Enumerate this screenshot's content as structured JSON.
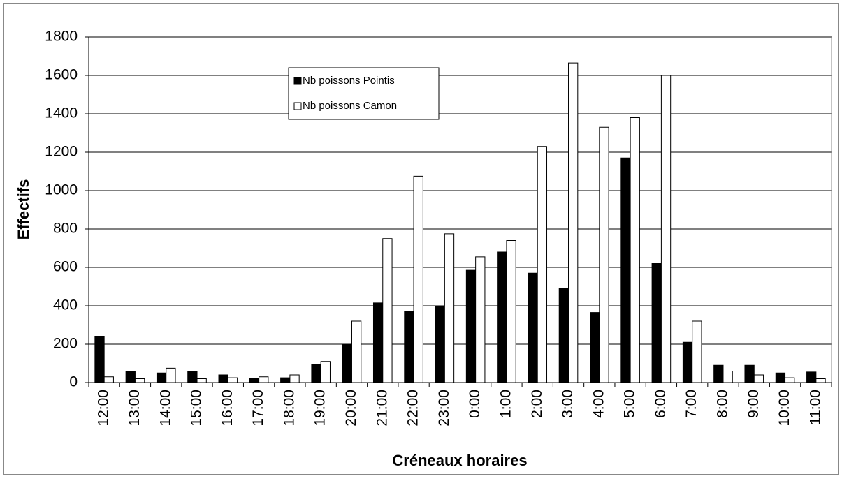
{
  "chart_data": {
    "type": "bar",
    "x_label": "Créneaux horaires",
    "y_label": "Effectifs",
    "categories": [
      "12:00",
      "13:00",
      "14:00",
      "15:00",
      "16:00",
      "17:00",
      "18:00",
      "19:00",
      "20:00",
      "21:00",
      "22:00",
      "23:00",
      "0:00",
      "1:00",
      "2:00",
      "3:00",
      "4:00",
      "5:00",
      "6:00",
      "7:00",
      "8:00",
      "9:00",
      "10:00",
      "11:00"
    ],
    "series": [
      {
        "name": "Nb poissons Pointis",
        "color": "#000000",
        "values": [
          240,
          60,
          50,
          60,
          40,
          20,
          25,
          95,
          200,
          415,
          370,
          400,
          585,
          680,
          570,
          490,
          365,
          1170,
          620,
          210,
          90,
          90,
          50,
          55
        ]
      },
      {
        "name": "Nb poissons Camon",
        "color": "#ffffff",
        "values": [
          30,
          20,
          75,
          20,
          25,
          30,
          40,
          110,
          320,
          750,
          1075,
          775,
          655,
          740,
          1230,
          1665,
          1330,
          1380,
          1600,
          320,
          60,
          40,
          25,
          20
        ]
      }
    ],
    "ylim": [
      0,
      1800
    ],
    "yticks": [
      0,
      200,
      400,
      600,
      800,
      1000,
      1200,
      1400,
      1600,
      1800
    ],
    "grid": true
  }
}
